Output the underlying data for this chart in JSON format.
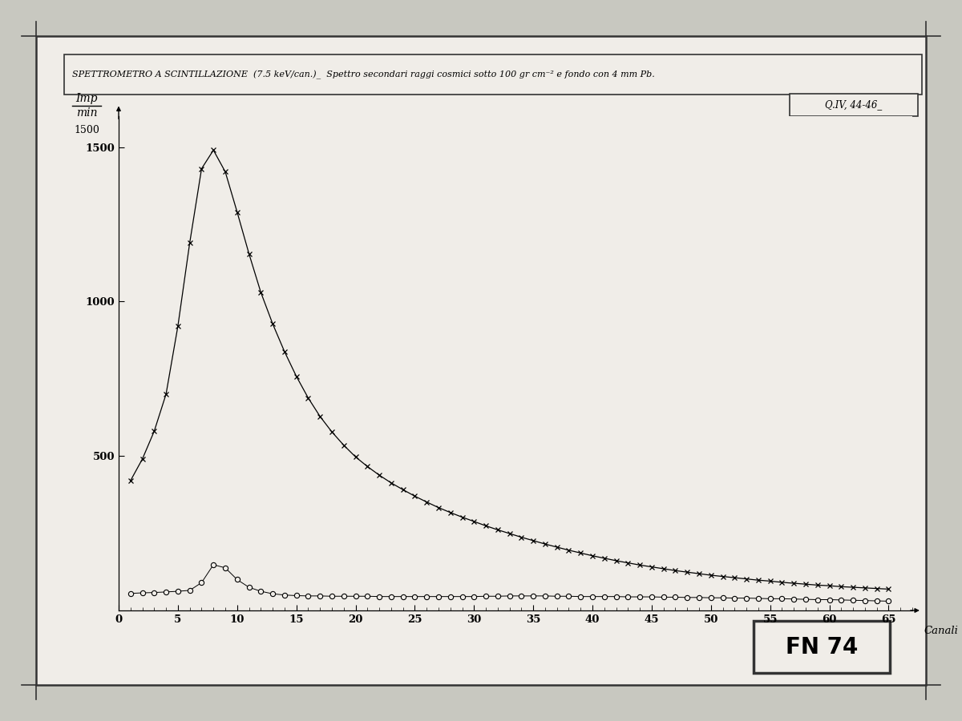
{
  "title": "SPETTROMETRO A SCINTILLAZIONE  (7.5 keV/can.)_  Spettro secondari raggi cosmici sotto 100 gr cm⁻² e fondo con 4 mm Pb.",
  "ylabel_top": "Imp",
  "ylabel_bot": "min",
  "xlabel": "Canali",
  "ref_label": "Q.IV, 44-46_",
  "fn_label": "FN 74",
  "xlim": [
    0,
    67
  ],
  "ylim": [
    0,
    1600
  ],
  "yticks": [
    500,
    1000,
    1500
  ],
  "xticks": [
    0,
    5,
    10,
    15,
    20,
    25,
    30,
    35,
    40,
    45,
    50,
    55,
    60,
    65
  ],
  "page_bg": "#c8c8c0",
  "card_bg": "#f0ede8",
  "curve1_x": [
    1,
    2,
    3,
    4,
    5,
    6,
    7,
    8,
    9,
    10,
    11,
    12,
    13,
    14,
    15,
    16,
    17,
    18,
    19,
    20,
    21,
    22,
    23,
    24,
    25,
    26,
    27,
    28,
    29,
    30,
    31,
    32,
    33,
    34,
    35,
    36,
    37,
    38,
    39,
    40,
    41,
    42,
    43,
    44,
    45,
    46,
    47,
    48,
    49,
    50,
    51,
    52,
    53,
    54,
    55,
    56,
    57,
    58,
    59,
    60,
    61,
    62,
    63,
    64,
    65
  ],
  "curve1_y": [
    420,
    490,
    580,
    700,
    920,
    1190,
    1430,
    1490,
    1420,
    1290,
    1155,
    1030,
    928,
    838,
    758,
    688,
    628,
    578,
    535,
    497,
    466,
    438,
    413,
    391,
    370,
    351,
    333,
    317,
    302,
    288,
    274,
    261,
    249,
    237,
    226,
    215,
    205,
    195,
    186,
    177,
    169,
    161,
    154,
    147,
    141,
    135,
    129,
    124,
    119,
    114,
    110,
    106,
    102,
    98,
    95,
    91,
    88,
    85,
    82,
    80,
    77,
    75,
    73,
    71,
    69
  ],
  "curve2_x": [
    1,
    2,
    3,
    4,
    5,
    6,
    7,
    8,
    9,
    10,
    11,
    12,
    13,
    14,
    15,
    16,
    17,
    18,
    19,
    20,
    21,
    22,
    23,
    24,
    25,
    26,
    27,
    28,
    29,
    30,
    31,
    32,
    33,
    34,
    35,
    36,
    37,
    38,
    39,
    40,
    41,
    42,
    43,
    44,
    45,
    46,
    47,
    48,
    49,
    50,
    51,
    52,
    53,
    54,
    55,
    56,
    57,
    58,
    59,
    60,
    61,
    62,
    63,
    64,
    65
  ],
  "curve2_y": [
    55,
    57,
    58,
    60,
    62,
    65,
    90,
    148,
    138,
    100,
    75,
    62,
    54,
    50,
    48,
    47,
    47,
    46,
    46,
    46,
    46,
    45,
    45,
    45,
    45,
    45,
    45,
    45,
    45,
    45,
    46,
    46,
    47,
    47,
    47,
    47,
    46,
    46,
    45,
    45,
    45,
    45,
    44,
    44,
    44,
    43,
    43,
    42,
    42,
    41,
    41,
    40,
    40,
    39,
    38,
    38,
    37,
    36,
    35,
    35,
    34,
    33,
    32,
    31,
    30
  ]
}
